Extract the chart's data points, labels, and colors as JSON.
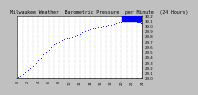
{
  "title": "Milwaukee Weather  Barometric Pressure  per Minute  (24 Hours)",
  "bg_color": "#c0c0c0",
  "plot_bg_color": "#ffffff",
  "dot_color": "#0000ff",
  "highlight_color": "#0000ff",
  "y_min": 29.0,
  "y_max": 30.2,
  "x_min": 0,
  "x_max": 1440,
  "x_ticks": [
    0,
    60,
    120,
    180,
    240,
    300,
    360,
    420,
    480,
    540,
    600,
    660,
    720,
    780,
    840,
    900,
    960,
    1020,
    1080,
    1140,
    1200,
    1260,
    1320,
    1380,
    1440
  ],
  "data_x": [
    10,
    30,
    60,
    90,
    120,
    150,
    180,
    210,
    240,
    270,
    300,
    330,
    360,
    390,
    420,
    450,
    480,
    510,
    540,
    570,
    600,
    630,
    660,
    690,
    720,
    750,
    780,
    810,
    840,
    870,
    900,
    930,
    960,
    990,
    1020,
    1050,
    1080,
    1110,
    1140,
    1170,
    1200,
    1210,
    1220,
    1230,
    1240,
    1250,
    1260,
    1270,
    1280,
    1290,
    1300,
    1310,
    1320,
    1330,
    1340,
    1350,
    1360,
    1370,
    1380,
    1390,
    1400,
    1410,
    1420,
    1430,
    1440
  ],
  "data_y": [
    29.02,
    29.05,
    29.08,
    29.12,
    29.16,
    29.2,
    29.24,
    29.3,
    29.35,
    29.4,
    29.46,
    29.5,
    29.55,
    29.6,
    29.65,
    29.68,
    29.7,
    29.73,
    29.75,
    29.77,
    29.78,
    29.8,
    29.82,
    29.84,
    29.86,
    29.88,
    29.9,
    29.92,
    29.94,
    29.96,
    29.97,
    29.98,
    29.99,
    30.0,
    30.01,
    30.02,
    30.03,
    30.05,
    30.07,
    30.08,
    30.09,
    30.1,
    30.1,
    30.11,
    30.11,
    30.11,
    30.12,
    30.12,
    30.12,
    30.12,
    30.12,
    30.12,
    30.12,
    30.11,
    30.11,
    30.11,
    30.1,
    30.1,
    30.09,
    30.09,
    30.08,
    30.08,
    30.07,
    30.07,
    30.06
  ],
  "title_fontsize": 3.5,
  "tick_fontsize": 2.5,
  "ylabel_fontsize": 2.8,
  "grid_color": "#888888",
  "y_tick_vals": [
    29.0,
    29.1,
    29.2,
    29.3,
    29.4,
    29.5,
    29.6,
    29.7,
    29.8,
    29.9,
    30.0,
    30.1,
    30.2
  ]
}
